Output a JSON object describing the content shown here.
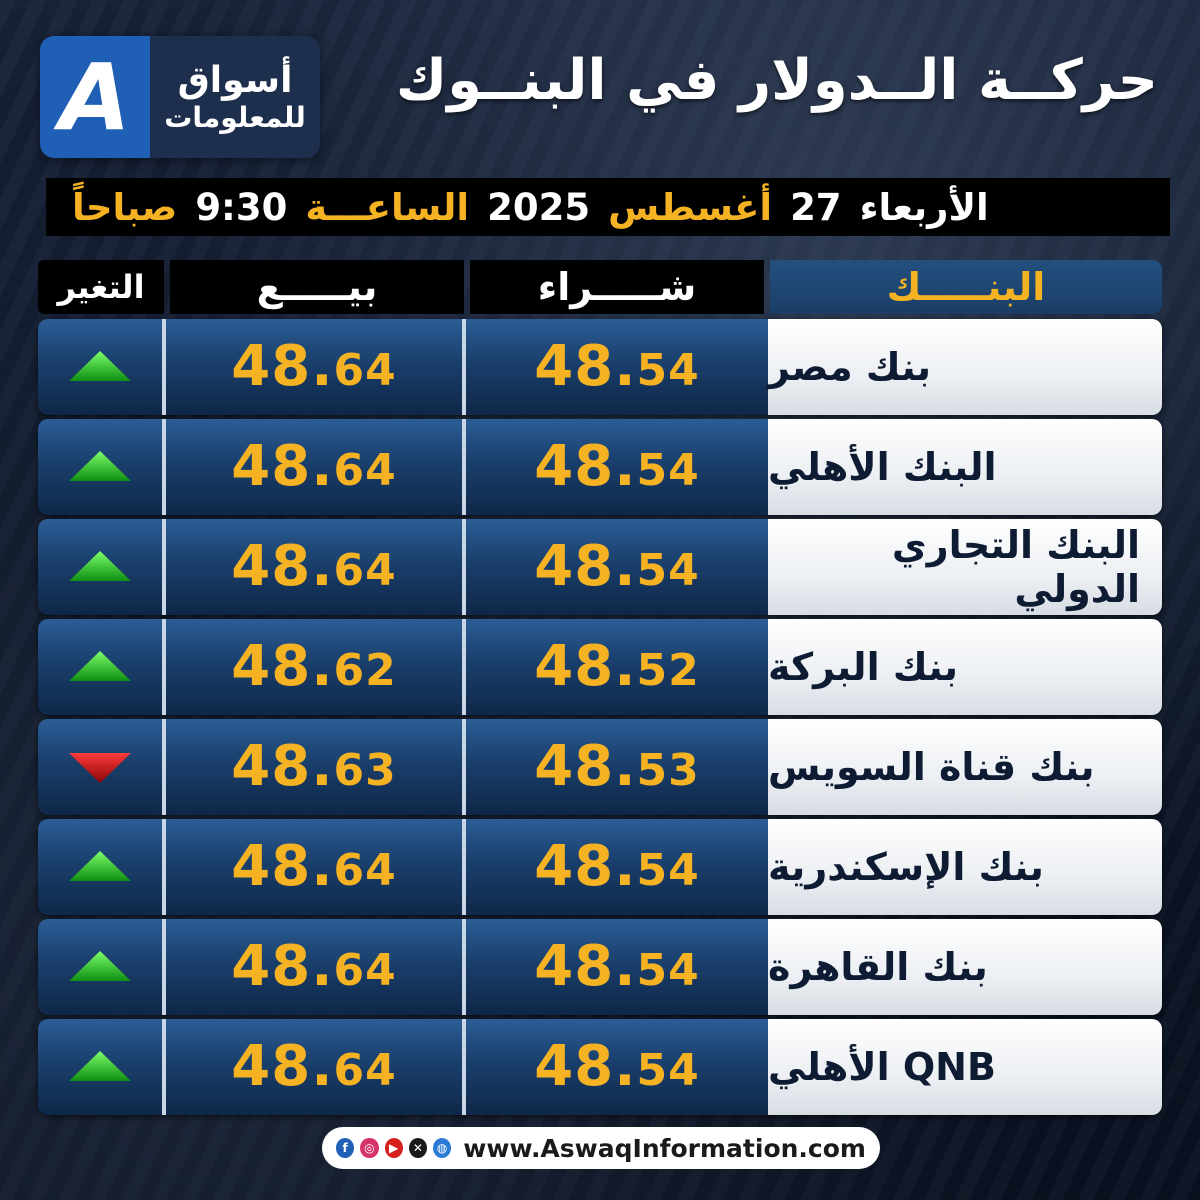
{
  "brand": {
    "mark": "A",
    "line1": "أسواق",
    "line2": "للمعلومات"
  },
  "title": "حركــة الــدولار في البنــوك",
  "date_bar": {
    "day": "الأربعاء",
    "day_num": "27",
    "month": "أغسطس",
    "year": "2025",
    "time_label": "الساعـــة",
    "time": "9:30",
    "period": "صباحاً"
  },
  "columns": {
    "bank": "البنـــــك",
    "buy": "شـــــراء",
    "sell": "بيـــــع",
    "change": "التغير"
  },
  "rows": [
    {
      "bank": "بنك مصر",
      "buy_int": "48.",
      "buy_dec": "54",
      "sell_int": "48.",
      "sell_dec": "64",
      "change": "up"
    },
    {
      "bank": "البنك الأهلي",
      "buy_int": "48.",
      "buy_dec": "54",
      "sell_int": "48.",
      "sell_dec": "64",
      "change": "up"
    },
    {
      "bank": "البنك التجاري الدولي",
      "buy_int": "48.",
      "buy_dec": "54",
      "sell_int": "48.",
      "sell_dec": "64",
      "change": "up"
    },
    {
      "bank": "بنك البركة",
      "buy_int": "48.",
      "buy_dec": "52",
      "sell_int": "48.",
      "sell_dec": "62",
      "change": "up"
    },
    {
      "bank": "بنك قناة السويس",
      "buy_int": "48.",
      "buy_dec": "53",
      "sell_int": "48.",
      "sell_dec": "63",
      "change": "down"
    },
    {
      "bank": "بنك الإسكندرية",
      "buy_int": "48.",
      "buy_dec": "54",
      "sell_int": "48.",
      "sell_dec": "64",
      "change": "up"
    },
    {
      "bank": "بنك القاهرة",
      "buy_int": "48.",
      "buy_dec": "54",
      "sell_int": "48.",
      "sell_dec": "64",
      "change": "up"
    },
    {
      "bank": "QNB الأهلي",
      "buy_int": "48.",
      "buy_dec": "54",
      "sell_int": "48.",
      "sell_dec": "64",
      "change": "up"
    }
  ],
  "colors": {
    "accent": "#f5b324",
    "up": "#19c21f",
    "down": "#d01313",
    "brand_blue": "#1f5fb5"
  },
  "footer": {
    "icons": [
      "facebook-icon",
      "instagram-icon",
      "youtube-icon",
      "x-icon",
      "web-icon"
    ],
    "url": "www.AswaqInformation.com"
  }
}
